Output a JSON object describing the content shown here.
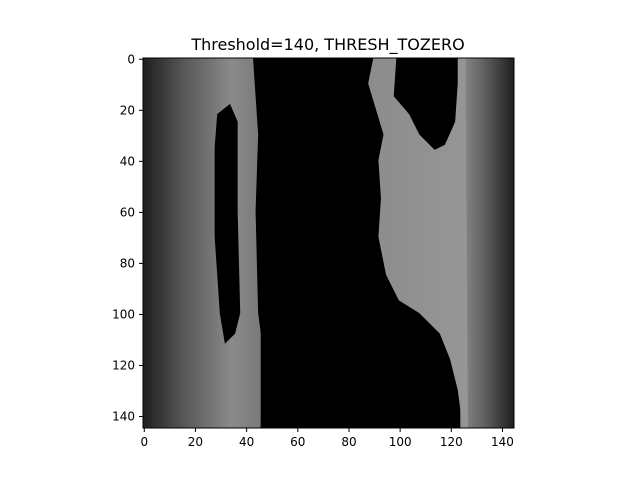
{
  "chart_data": {
    "type": "heatmap",
    "title": "Threshold=140, THRESH_TOZERO",
    "xlabel": "",
    "ylabel": "",
    "xlim": [
      0,
      145
    ],
    "ylim": [
      145,
      0
    ],
    "xticks": [
      0,
      20,
      40,
      60,
      80,
      100,
      120,
      140
    ],
    "yticks": [
      0,
      20,
      40,
      60,
      80,
      100,
      120,
      140
    ],
    "grid": false,
    "colormap": "gray",
    "image": {
      "rows": 145,
      "cols": 145,
      "description_regions": [
        {
          "name": "left gray band",
          "x": [
            0,
            46
          ],
          "value": "gradient dark-to-light"
        },
        {
          "name": "black stripe inside left band",
          "x": [
            28,
            38
          ],
          "y": [
            20,
            112
          ],
          "value": 0
        },
        {
          "name": "central black region",
          "x": [
            44,
            126
          ],
          "value": 0
        },
        {
          "name": "right light region",
          "x": [
            88,
            126
          ],
          "y": [
            0,
            145
          ],
          "value": "light gray, partially thresholded"
        },
        {
          "name": "right gray band",
          "x": [
            124,
            145
          ],
          "value": "gradient light-to-dark"
        }
      ]
    }
  }
}
